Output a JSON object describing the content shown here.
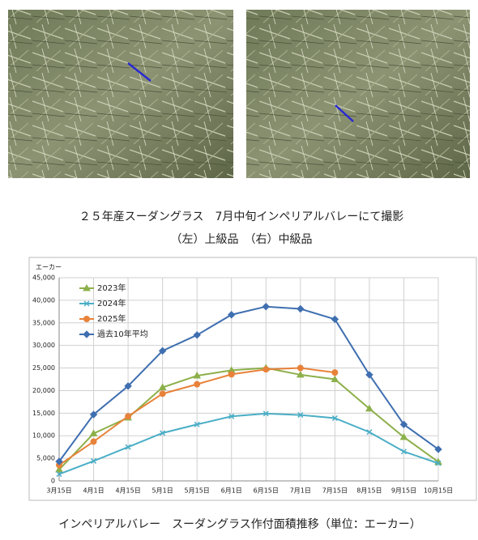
{
  "caption": {
    "line1": "２５年産スーダングラス　7月中旬インペリアルバレーにて撮影",
    "line2": "（左）上級品　（右）中級品"
  },
  "chart_data": {
    "type": "line",
    "title": "インペリアルバレー　スーダングラス作付面積推移（単位：エーカー）",
    "y_label": "エーカー",
    "categories": [
      "3月15日",
      "4月1日",
      "4月15日",
      "5月1日",
      "5月15日",
      "6月1日",
      "6月15日",
      "7月1日",
      "7月15日",
      "8月15日",
      "9月15日",
      "10月15日"
    ],
    "series": [
      {
        "name": "2023年",
        "color": "#8db04a",
        "marker": "triangle",
        "values": [
          2500,
          10500,
          14000,
          20700,
          23300,
          24500,
          25000,
          23500,
          22500,
          16000,
          9700,
          4200
        ]
      },
      {
        "name": "2024年",
        "color": "#4aaec6",
        "marker": "x",
        "values": [
          1500,
          4400,
          7500,
          10600,
          12500,
          14300,
          14900,
          14600,
          13900,
          10800,
          6500,
          3900
        ]
      },
      {
        "name": "2025年",
        "color": "#e8823a",
        "marker": "circle",
        "values": [
          3500,
          8700,
          14300,
          19300,
          21400,
          23600,
          24700,
          25000,
          24000,
          null,
          null,
          null
        ]
      },
      {
        "name": "過去10年平均",
        "color": "#3f6fb0",
        "marker": "diamond",
        "values": [
          4300,
          14700,
          21000,
          28800,
          32300,
          36800,
          38600,
          38100,
          35800,
          23500,
          12500,
          7000
        ]
      }
    ],
    "ylim": [
      0,
      45000
    ],
    "yticks": [
      0,
      {
        "value": 5000,
        "label": "5,000"
      },
      {
        "value": 10000,
        "label": "10,000"
      },
      {
        "value": 15000,
        "label": "15,000"
      },
      {
        "value": 20000,
        "label": "20,000"
      },
      {
        "value": 25000,
        "label": "25,000"
      },
      {
        "value": 30000,
        "label": "30,000"
      },
      {
        "value": 35000,
        "label": "35,000"
      },
      {
        "value": 40000,
        "label": "40,000"
      },
      {
        "value": 45000,
        "label": "45,000"
      }
    ],
    "grid": true,
    "legend": "top-left"
  }
}
